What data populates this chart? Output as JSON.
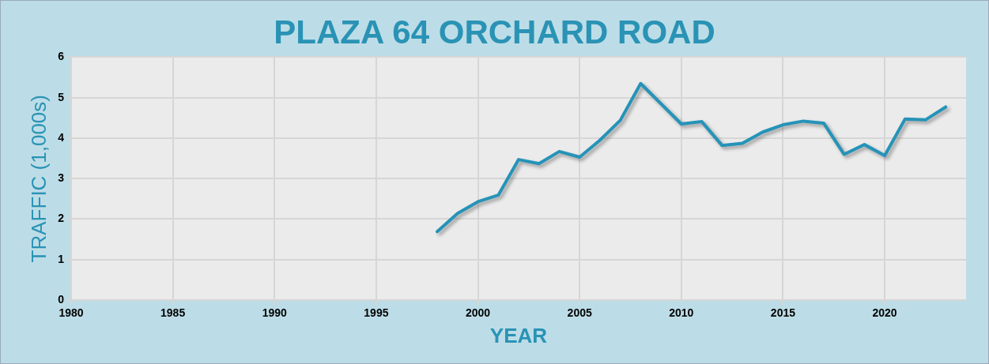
{
  "chart_data": {
    "type": "line",
    "title": "PLAZA 64 ORCHARD ROAD",
    "xlabel": "YEAR",
    "ylabel": "TRAFFIC (1,000s)",
    "x": [
      1998,
      1999,
      2000,
      2001,
      2002,
      2003,
      2004,
      2005,
      2006,
      2007,
      2008,
      2009,
      2010,
      2011,
      2012,
      2013,
      2014,
      2015,
      2016,
      2017,
      2018,
      2019,
      2020,
      2021,
      2022,
      2023
    ],
    "series": [
      {
        "color": "#2593b8",
        "values": [
          1.69,
          2.14,
          2.43,
          2.59,
          3.47,
          3.37,
          3.67,
          3.53,
          3.95,
          4.44,
          5.35,
          4.85,
          4.35,
          4.41,
          3.82,
          3.87,
          4.15,
          4.33,
          4.42,
          4.37,
          3.6,
          3.84,
          3.57,
          4.47,
          4.45,
          4.77
        ]
      }
    ],
    "xlim": [
      1980,
      2024
    ],
    "xticks": [
      1980,
      1985,
      1990,
      1995,
      2000,
      2005,
      2010,
      2015,
      2020
    ],
    "ylim": [
      0,
      6
    ],
    "yticks": [
      0,
      1,
      2,
      3,
      4,
      5,
      6
    ],
    "grid": true,
    "legend": false,
    "marker": "none",
    "line_style": "solid"
  }
}
